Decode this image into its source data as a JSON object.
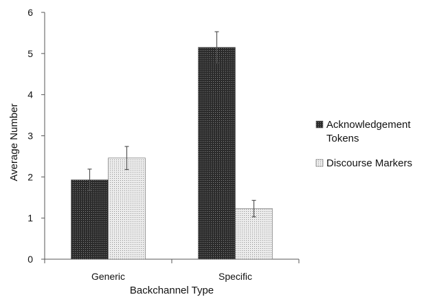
{
  "chart_data": {
    "type": "bar",
    "title": "",
    "xlabel": "Backchannel Type",
    "ylabel": "Average Number",
    "categories": [
      "Generic",
      "Specific"
    ],
    "ylim": [
      0,
      6
    ],
    "yticks": [
      "0",
      "1",
      "2",
      "3",
      "4",
      "5",
      "6"
    ],
    "grid": false,
    "legend_position": "right",
    "series": [
      {
        "name": "Acknowledgement Tokens",
        "name_lines": [
          "Acknowledgement",
          "Tokens"
        ],
        "values": [
          1.93,
          5.15
        ],
        "error": [
          0.26,
          0.38
        ],
        "color": "#2b2b2b",
        "pattern": "dark-dots"
      },
      {
        "name": "Discourse Markers",
        "name_lines": [
          "Discourse Markers"
        ],
        "values": [
          2.46,
          1.23
        ],
        "error": [
          0.28,
          0.2
        ],
        "color": "#cfcfcf",
        "pattern": "light-dots"
      }
    ]
  }
}
